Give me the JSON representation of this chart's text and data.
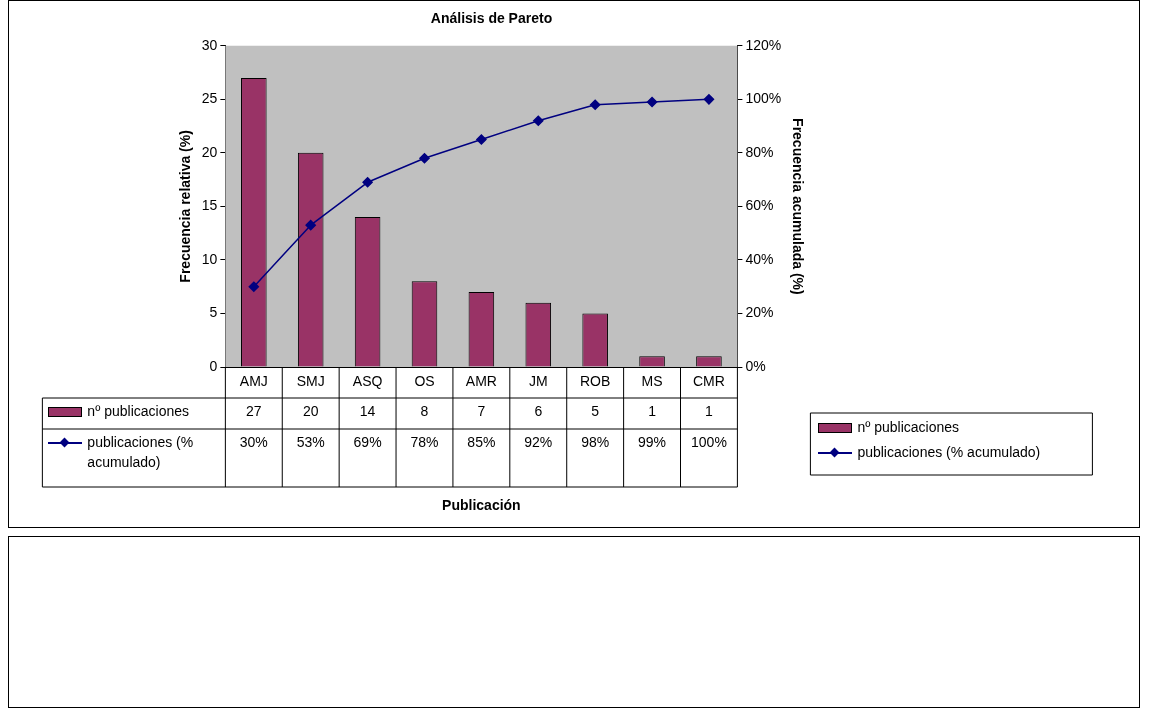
{
  "chart_data": {
    "type": "bar",
    "title": "Análisis de Pareto",
    "annotations": [
      "Publicación"
    ],
    "ylabel": "Frecuencia relativa (%)",
    "y2label": "Frecuencia acumulada (%)",
    "categories": [
      "AMJ",
      "SMJ",
      "ASQ",
      "OS",
      "AMR",
      "JM",
      "ROB",
      "MS",
      "CMR"
    ],
    "series": [
      {
        "name": "nº publicaciones",
        "color": "#993366",
        "values": [
          27,
          20,
          14,
          8,
          7,
          6,
          5,
          1,
          1
        ],
        "value_labels": [
          "27",
          "20",
          "14",
          "8",
          "7",
          "6",
          "5",
          "1",
          "1"
        ]
      },
      {
        "name": "publicaciones (% acumulado)",
        "type": "line",
        "axis": "y2",
        "color": "#000080",
        "marker": "diamond",
        "line_style": "solid",
        "values": [
          30,
          53,
          69,
          78,
          85,
          92,
          98,
          99,
          100
        ],
        "value_labels": [
          "30%",
          "53%",
          "69%",
          "78%",
          "85%",
          "92%",
          "98%",
          "99%",
          "100%"
        ]
      }
    ],
    "ylim": [
      0,
      30
    ],
    "yticks": [
      0,
      5,
      10,
      15,
      20,
      25,
      30
    ],
    "y2lim": [
      0,
      120
    ],
    "y2ticks": [
      {
        "value": 0,
        "label": "0%"
      },
      {
        "value": 20,
        "label": "20%"
      },
      {
        "value": 40,
        "label": "40%"
      },
      {
        "value": 60,
        "label": "60%"
      },
      {
        "value": 80,
        "label": "80%"
      },
      {
        "value": 100,
        "label": "100%"
      },
      {
        "value": 120,
        "label": "120%"
      }
    ],
    "grid": false,
    "legend": "bottom"
  }
}
